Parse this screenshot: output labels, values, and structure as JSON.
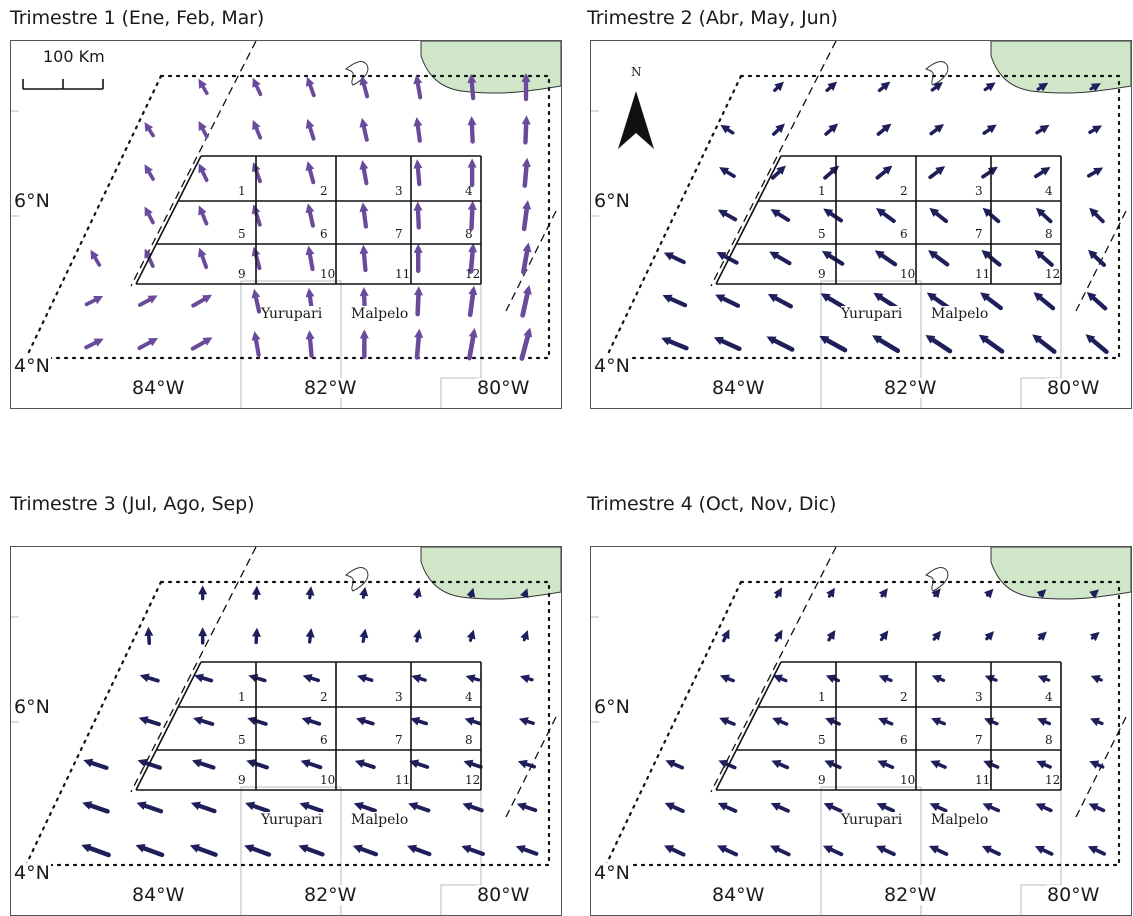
{
  "panels": [
    {
      "title": "Trimestre 1 (Ene, Feb, Mar)",
      "season": "q1"
    },
    {
      "title": "Trimestre 2 (Abr, May, Jun)",
      "season": "q2"
    },
    {
      "title": "Trimestre 3 (Jul, Ago, Sep)",
      "season": "q3"
    },
    {
      "title": "Trimestre 4 (Oct, Nov, Dic)",
      "season": "q4"
    }
  ],
  "labels": {
    "lat_top": "6°N",
    "lat_bottom": "4°N",
    "lon": [
      "84°W",
      "82°W",
      "80°W"
    ],
    "place_left": "Yurupari",
    "place_right": "Malpelo",
    "scale_bar": "100 Km",
    "north": "N"
  },
  "cells": [
    "1",
    "2",
    "3",
    "4",
    "5",
    "6",
    "7",
    "8",
    "9",
    "10",
    "11",
    "12"
  ],
  "colors": {
    "arrow_q1": "#6a4a9a",
    "arrow_dark": "#1e1e5a",
    "land": "#cfe6c9",
    "frame": "#555555"
  }
}
